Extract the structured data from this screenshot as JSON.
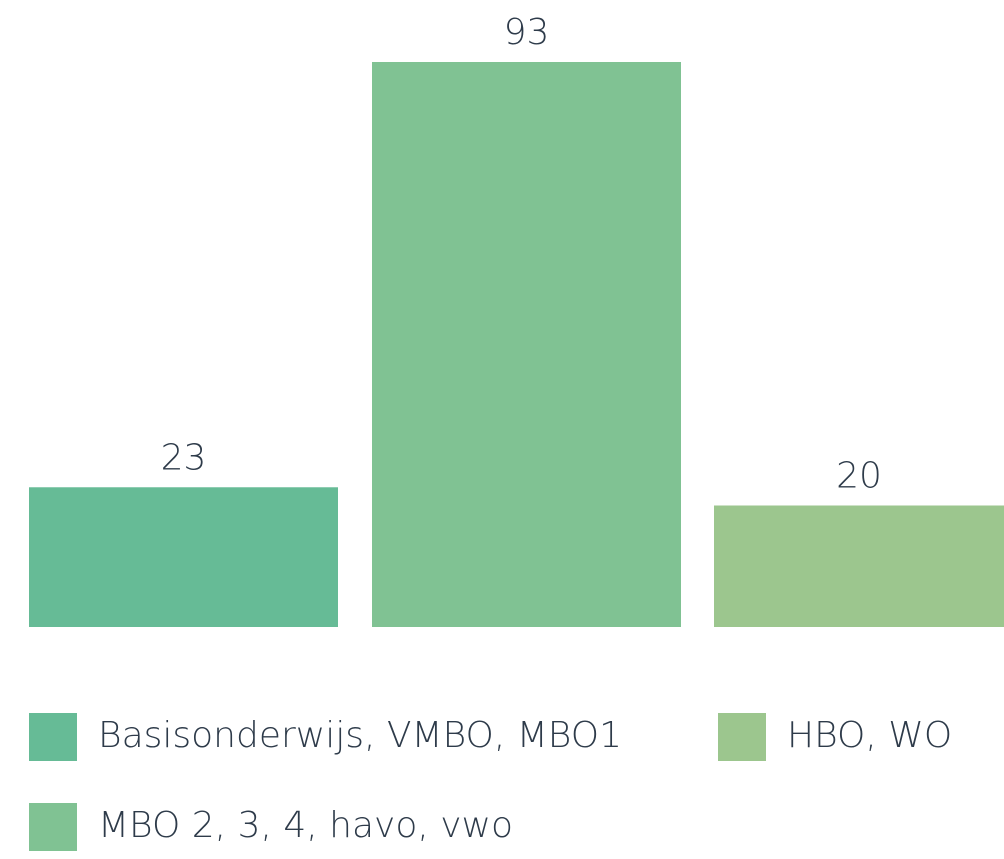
{
  "chart_data": {
    "type": "bar",
    "categories": [
      "Basisonderwijs, VMBO, MBO1",
      "MBO 2, 3, 4, havo, vwo",
      "HBO, WO"
    ],
    "values": [
      23,
      93,
      20
    ],
    "colors": [
      "#66bb96",
      "#80c293",
      "#9cc68e"
    ],
    "legend": "bottom"
  }
}
